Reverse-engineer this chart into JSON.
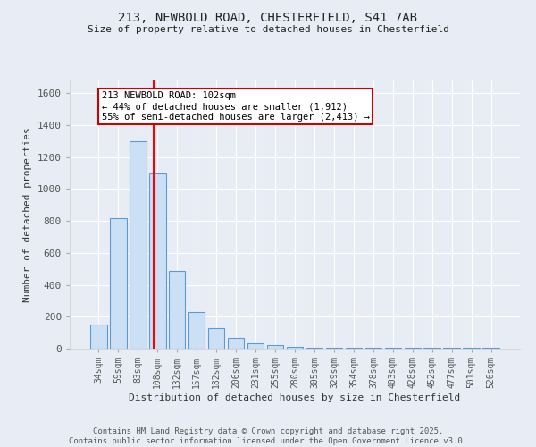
{
  "title_line1": "213, NEWBOLD ROAD, CHESTERFIELD, S41 7AB",
  "title_line2": "Size of property relative to detached houses in Chesterfield",
  "xlabel": "Distribution of detached houses by size in Chesterfield",
  "ylabel": "Number of detached properties",
  "categories": [
    "34sqm",
    "59sqm",
    "83sqm",
    "108sqm",
    "132sqm",
    "157sqm",
    "182sqm",
    "206sqm",
    "231sqm",
    "255sqm",
    "280sqm",
    "305sqm",
    "329sqm",
    "354sqm",
    "378sqm",
    "403sqm",
    "428sqm",
    "452sqm",
    "477sqm",
    "501sqm",
    "526sqm"
  ],
  "values": [
    150,
    820,
    1300,
    1100,
    490,
    230,
    130,
    65,
    35,
    25,
    10,
    5,
    5,
    5,
    5,
    5,
    5,
    5,
    5,
    5,
    5
  ],
  "bar_color": "#cce0f5",
  "bar_edge_color": "#5b9bd5",
  "vline_x_index": 3,
  "vline_color": "red",
  "annotation_text": "213 NEWBOLD ROAD: 102sqm\n← 44% of detached houses are smaller (1,912)\n55% of semi-detached houses are larger (2,413) →",
  "box_edge_color": "#cc0000",
  "ylim": [
    0,
    1680
  ],
  "yticks": [
    0,
    200,
    400,
    600,
    800,
    1000,
    1200,
    1400,
    1600
  ],
  "footnote": "Contains HM Land Registry data © Crown copyright and database right 2025.\nContains public sector information licensed under the Open Government Licence v3.0.",
  "background_color": "#e8edf5",
  "grid_color": "#ffffff",
  "tick_color": "#555555"
}
